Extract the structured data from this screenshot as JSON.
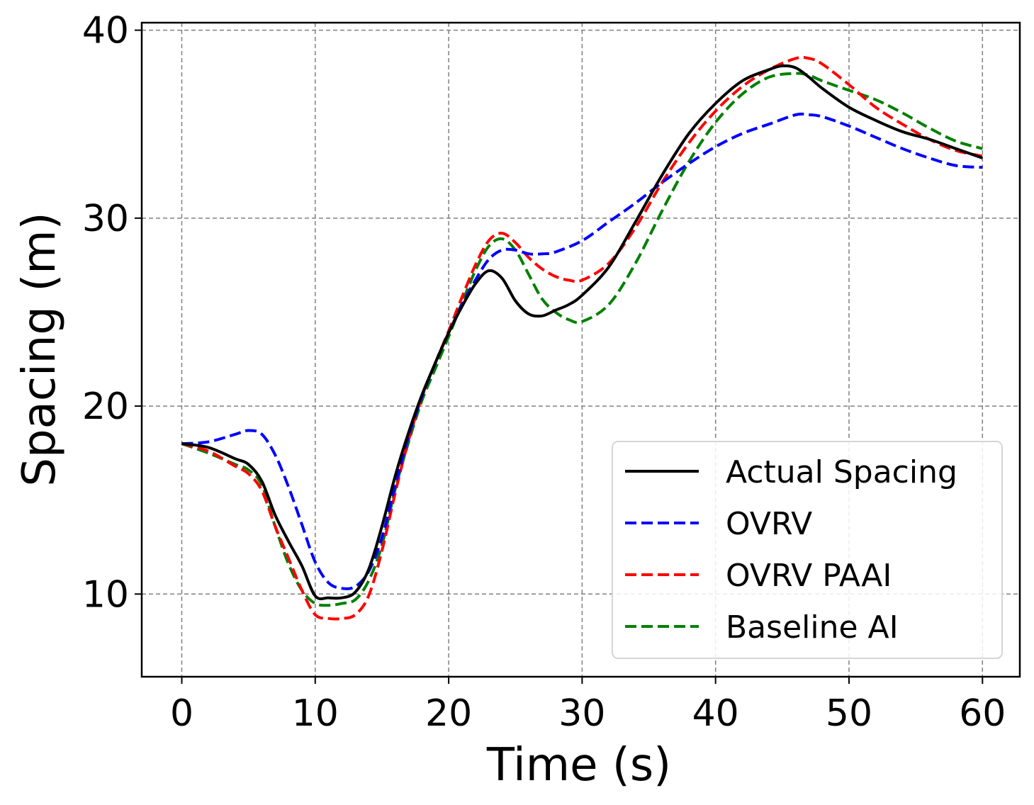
{
  "chart_data": {
    "type": "line",
    "title": "",
    "xlabel": "Time (s)",
    "ylabel": "Spacing (m)",
    "xlim": [
      -3,
      62.8
    ],
    "ylim": [
      5.6,
      40.4
    ],
    "xticks": [
      0,
      10,
      20,
      30,
      40,
      50,
      60
    ],
    "yticks": [
      10,
      20,
      30,
      40
    ],
    "xtick_labels": [
      "0",
      "10",
      "20",
      "30",
      "40",
      "50",
      "60"
    ],
    "ytick_labels": [
      "10",
      "20",
      "30",
      "40"
    ],
    "grid": true,
    "legend_position": "lower-right",
    "series": [
      {
        "name": "Actual Spacing",
        "color": "#000000",
        "style": "solid",
        "x": [
          0,
          2,
          4,
          5,
          6,
          7,
          8,
          9,
          10,
          11,
          12,
          13,
          14,
          15,
          16,
          17,
          18,
          19,
          20,
          21,
          22,
          23,
          24,
          25,
          26,
          27,
          28,
          29,
          30,
          32,
          34,
          36,
          38,
          40,
          42,
          44,
          45,
          46,
          47,
          48,
          50,
          52,
          54,
          56,
          58,
          60
        ],
        "values": [
          18.0,
          17.8,
          17.2,
          16.9,
          16.0,
          14.2,
          12.8,
          11.5,
          9.9,
          9.8,
          9.8,
          10.1,
          11.3,
          13.6,
          16.3,
          18.6,
          20.6,
          22.3,
          23.9,
          25.3,
          26.5,
          27.2,
          26.8,
          25.6,
          24.9,
          24.8,
          25.1,
          25.4,
          25.9,
          27.4,
          29.8,
          32.3,
          34.5,
          36.1,
          37.3,
          37.9,
          38.1,
          38.0,
          37.5,
          36.9,
          35.9,
          35.2,
          34.6,
          34.2,
          33.7,
          33.2
        ]
      },
      {
        "name": "OVRV",
        "color": "#0000ff",
        "style": "dashed",
        "x": [
          0,
          2,
          4,
          5,
          6,
          7,
          8,
          9,
          10,
          11,
          12,
          13,
          14,
          15,
          16,
          17,
          18,
          19,
          20,
          21,
          22,
          23,
          24,
          25,
          26,
          27,
          28,
          30,
          32,
          34,
          36,
          38,
          40,
          42,
          44,
          46,
          47,
          48,
          50,
          52,
          54,
          56,
          58,
          60
        ],
        "values": [
          18.0,
          18.1,
          18.5,
          18.7,
          18.5,
          17.4,
          15.7,
          13.7,
          11.7,
          10.6,
          10.3,
          10.4,
          11.2,
          13.0,
          15.8,
          18.4,
          20.5,
          22.3,
          23.9,
          25.4,
          26.7,
          27.8,
          28.3,
          28.3,
          28.1,
          28.1,
          28.2,
          28.8,
          29.8,
          30.8,
          31.9,
          32.9,
          33.8,
          34.5,
          35.0,
          35.5,
          35.5,
          35.4,
          34.9,
          34.3,
          33.7,
          33.2,
          32.8,
          32.7
        ]
      },
      {
        "name": "OVRV PAAI",
        "color": "#ff0000",
        "style": "dashed",
        "x": [
          0,
          2,
          4,
          5,
          6,
          7,
          8,
          9,
          10,
          11,
          12,
          13,
          14,
          15,
          16,
          17,
          18,
          19,
          20,
          21,
          22,
          23,
          24,
          25,
          26,
          27,
          28,
          29,
          30,
          32,
          34,
          36,
          38,
          40,
          42,
          44,
          46,
          47,
          48,
          50,
          52,
          54,
          56,
          58,
          60
        ],
        "values": [
          18.0,
          17.6,
          16.8,
          16.4,
          15.5,
          13.6,
          11.9,
          10.2,
          8.9,
          8.7,
          8.7,
          8.9,
          9.9,
          12.3,
          15.4,
          18.2,
          20.5,
          22.3,
          24.0,
          25.8,
          27.5,
          28.8,
          29.2,
          28.7,
          27.9,
          27.3,
          26.9,
          26.7,
          26.7,
          27.6,
          29.5,
          31.9,
          34.0,
          35.7,
          37.0,
          37.9,
          38.5,
          38.5,
          38.2,
          37.1,
          35.9,
          35.0,
          34.2,
          33.6,
          33.3
        ]
      },
      {
        "name": "Baseline AI",
        "color": "#008000",
        "style": "dashed",
        "x": [
          0,
          2,
          4,
          5,
          6,
          7,
          8,
          9,
          10,
          11,
          12,
          13,
          14,
          15,
          16,
          17,
          18,
          19,
          20,
          21,
          22,
          23,
          24,
          25,
          26,
          27,
          28,
          29,
          30,
          32,
          34,
          36,
          38,
          40,
          42,
          44,
          46,
          47,
          48,
          50,
          52,
          54,
          56,
          58,
          60
        ],
        "values": [
          18.0,
          17.5,
          16.9,
          16.6,
          15.8,
          13.6,
          11.6,
          10.2,
          9.5,
          9.4,
          9.5,
          9.7,
          10.7,
          12.6,
          15.6,
          18.1,
          20.3,
          22.0,
          23.7,
          25.5,
          27.2,
          28.5,
          28.9,
          28.3,
          27.0,
          25.7,
          25.0,
          24.6,
          24.5,
          25.4,
          27.6,
          30.4,
          33.0,
          35.1,
          36.6,
          37.5,
          37.7,
          37.6,
          37.3,
          36.8,
          36.3,
          35.6,
          34.8,
          34.1,
          33.7
        ]
      }
    ]
  }
}
